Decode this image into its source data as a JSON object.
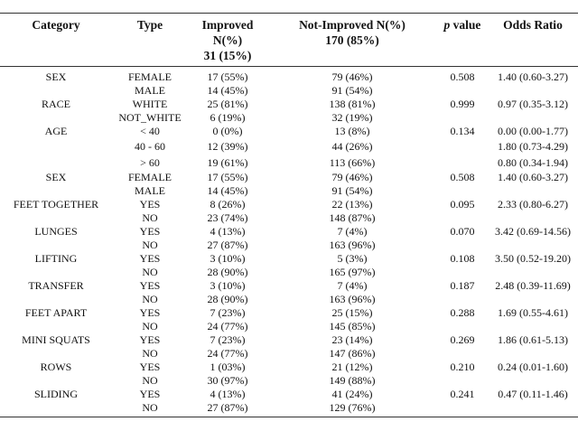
{
  "table": {
    "headers": {
      "category": "Category",
      "type": "Type",
      "improved": "Improved N(%)",
      "improved_total": "31 (15%)",
      "not_improved": "Not-Improved N(%)",
      "not_improved_total": "170 (85%)",
      "p_italic": "p",
      "p_rest": " value",
      "odds_ratio": "Odds Ratio"
    },
    "rows": [
      {
        "category": "SEX",
        "type": "FEMALE",
        "improved": "17 (55%)",
        "not_improved": "79 (46%)",
        "p": "0.508",
        "or": "1.40 (0.60-3.27)"
      },
      {
        "category": "",
        "type": "MALE",
        "improved": "14 (45%)",
        "not_improved": "91 (54%)",
        "p": "",
        "or": ""
      },
      {
        "category": "RACE",
        "type": "WHITE",
        "improved": "25 (81%)",
        "not_improved": "138 (81%)",
        "p": "0.999",
        "or": "0.97 (0.35-3.12)"
      },
      {
        "category": "",
        "type": "NOT_WHITE",
        "improved": "6 (19%)",
        "not_improved": "32 (19%)",
        "p": "",
        "or": ""
      },
      {
        "category": "AGE",
        "type": "< 40",
        "improved": "0 (0%)",
        "not_improved": "13 (8%)",
        "p": "0.134",
        "or": "0.00 (0.00-1.77)"
      },
      {
        "category": "",
        "type": "40 - 60",
        "improved": "12 (39%)",
        "not_improved": "44 (26%)",
        "p": "",
        "or": "1.80 (0.73-4.29)"
      },
      {
        "category": "",
        "type": "> 60",
        "improved": "19 (61%)",
        "not_improved": "113 (66%)",
        "p": "",
        "or": "0.80 (0.34-1.94)"
      },
      {
        "category": "SEX",
        "type": "FEMALE",
        "improved": "17 (55%)",
        "not_improved": "79 (46%)",
        "p": "0.508",
        "or": "1.40 (0.60-3.27)"
      },
      {
        "category": "",
        "type": "MALE",
        "improved": "14 (45%)",
        "not_improved": "91 (54%)",
        "p": "",
        "or": ""
      },
      {
        "category": "FEET TOGETHER",
        "type": "YES",
        "improved": "8 (26%)",
        "not_improved": "22 (13%)",
        "p": "0.095",
        "or": "2.33 (0.80-6.27)"
      },
      {
        "category": "",
        "type": "NO",
        "improved": "23 (74%)",
        "not_improved": "148 (87%)",
        "p": "",
        "or": ""
      },
      {
        "category": "LUNGES",
        "type": "YES",
        "improved": "4 (13%)",
        "not_improved": "7 (4%)",
        "p": "0.070",
        "or": "3.42 (0.69-14.56)"
      },
      {
        "category": "",
        "type": "NO",
        "improved": "27 (87%)",
        "not_improved": "163 (96%)",
        "p": "",
        "or": ""
      },
      {
        "category": "LIFTING",
        "type": "YES",
        "improved": "3 (10%)",
        "not_improved": "5 (3%)",
        "p": "0.108",
        "or": "3.50 (0.52-19.20)"
      },
      {
        "category": "",
        "type": "NO",
        "improved": "28 (90%)",
        "not_improved": "165 (97%)",
        "p": "",
        "or": ""
      },
      {
        "category": "TRANSFER",
        "type": "YES",
        "improved": "3 (10%)",
        "not_improved": "7 (4%)",
        "p": "0.187",
        "or": "2.48 (0.39-11.69)"
      },
      {
        "category": "",
        "type": "NO",
        "improved": "28 (90%)",
        "not_improved": "163 (96%)",
        "p": "",
        "or": ""
      },
      {
        "category": "FEET APART",
        "type": "YES",
        "improved": "7 (23%)",
        "not_improved": "25 (15%)",
        "p": "0.288",
        "or": "1.69 (0.55-4.61)"
      },
      {
        "category": "",
        "type": "NO",
        "improved": "24 (77%)",
        "not_improved": "145 (85%)",
        "p": "",
        "or": ""
      },
      {
        "category": "MINI SQUATS",
        "type": "YES",
        "improved": "7 (23%)",
        "not_improved": "23 (14%)",
        "p": "0.269",
        "or": "1.86 (0.61-5.13)"
      },
      {
        "category": "",
        "type": "NO",
        "improved": "24 (77%)",
        "not_improved": "147 (86%)",
        "p": "",
        "or": ""
      },
      {
        "category": "ROWS",
        "type": "YES",
        "improved": "1 (03%)",
        "not_improved": "21 (12%)",
        "p": "0.210",
        "or": "0.24 (0.01-1.60)"
      },
      {
        "category": "",
        "type": "NO",
        "improved": "30 (97%)",
        "not_improved": "149 (88%)",
        "p": "",
        "or": ""
      },
      {
        "category": "SLIDING",
        "type": "YES",
        "improved": "4 (13%)",
        "not_improved": "41 (24%)",
        "p": "0.241",
        "or": "0.47 (0.11-1.46)"
      },
      {
        "category": "",
        "type": "NO",
        "improved": "27 (87%)",
        "not_improved": "129 (76%)",
        "p": "",
        "or": ""
      }
    ]
  }
}
